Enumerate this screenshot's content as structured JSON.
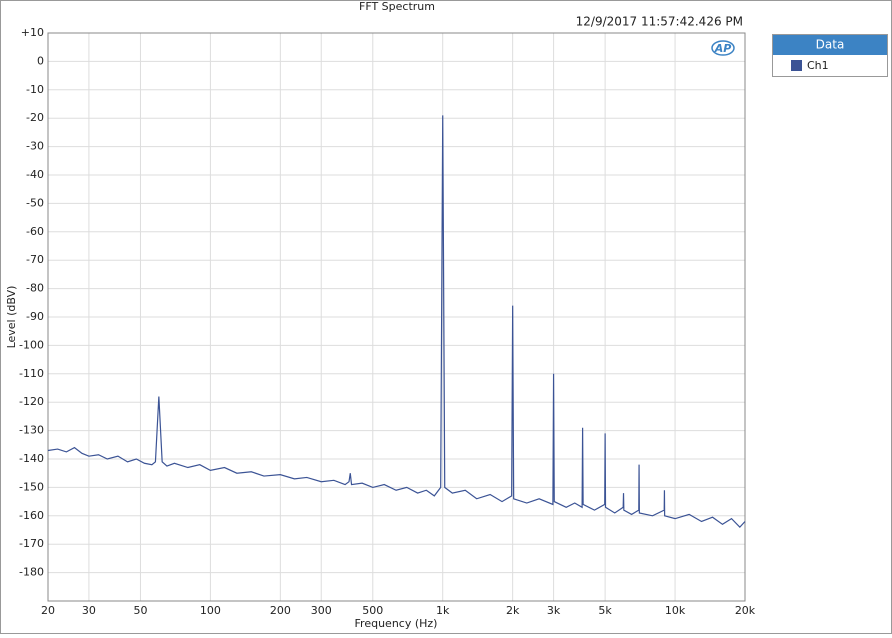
{
  "chart_data": {
    "type": "line",
    "title": "FFT Spectrum",
    "timestamp": "12/9/2017 11:57:42.426 PM",
    "logo": "AP",
    "x_label": "Frequency (Hz)",
    "y_label": "Level (dBV)",
    "legend_title": "Data",
    "log_x": true,
    "grid": true,
    "xlim": [
      20,
      20000
    ],
    "ylim": [
      -190,
      10
    ],
    "xticks": [
      20,
      30,
      50,
      100,
      200,
      300,
      500,
      {
        "value": 1000,
        "label": "1k"
      },
      {
        "value": 2000,
        "label": "2k"
      },
      {
        "value": 3000,
        "label": "3k"
      },
      {
        "value": 5000,
        "label": "5k"
      },
      {
        "value": 10000,
        "label": "10k"
      },
      {
        "value": 20000,
        "label": "20k"
      }
    ],
    "yticks": [
      {
        "value": 10,
        "label": "+10"
      },
      0,
      -10,
      -20,
      -30,
      -40,
      -50,
      -60,
      -70,
      -80,
      -90,
      -100,
      -110,
      -120,
      -130,
      -140,
      -150,
      -160,
      -170,
      -180
    ],
    "x": [
      20,
      22,
      24,
      26,
      28,
      30,
      33,
      36,
      40,
      44,
      48,
      52,
      56,
      58,
      60,
      62,
      65,
      70,
      80,
      90,
      100,
      115,
      130,
      150,
      170,
      200,
      230,
      260,
      300,
      340,
      380,
      395,
      400,
      405,
      450,
      500,
      560,
      630,
      700,
      780,
      850,
      920,
      980,
      1000,
      1020,
      1100,
      1250,
      1400,
      1600,
      1800,
      1980,
      2000,
      2020,
      2300,
      2600,
      2980,
      3000,
      3020,
      3400,
      3700,
      3980,
      4000,
      4020,
      4500,
      4980,
      5000,
      5020,
      5500,
      5980,
      6000,
      6020,
      6500,
      6980,
      7000,
      7020,
      8000,
      8980,
      9000,
      9020,
      10000,
      11500,
      13000,
      14500,
      16000,
      17500,
      19000,
      20000
    ],
    "series": [
      {
        "name": "Ch1",
        "color": "#3b5395",
        "values": [
          -137,
          -136.5,
          -137.5,
          -136,
          -138,
          -139,
          -138.5,
          -140,
          -139,
          -141,
          -140,
          -141.5,
          -142,
          -141,
          -118,
          -141,
          -142.5,
          -141.5,
          -143,
          -142,
          -144,
          -143,
          -145,
          -144.5,
          -146,
          -145.5,
          -147,
          -146.5,
          -148,
          -147.5,
          -149,
          -148,
          -145,
          -149,
          -148.5,
          -150,
          -149,
          -151,
          -150,
          -152,
          -151,
          -153,
          -150,
          -19,
          -150,
          -152,
          -151,
          -154,
          -152.5,
          -155,
          -153,
          -86,
          -154,
          -155.5,
          -154,
          -156,
          -110,
          -155,
          -157,
          -155.5,
          -157,
          -129,
          -156,
          -158,
          -156,
          -131,
          -157,
          -159,
          -157,
          -152,
          -158,
          -159.5,
          -158,
          -142,
          -159,
          -160,
          -158,
          -151,
          -160,
          -161,
          -159.5,
          -162,
          -160.5,
          -163,
          -161,
          -164,
          -162
        ]
      }
    ]
  }
}
